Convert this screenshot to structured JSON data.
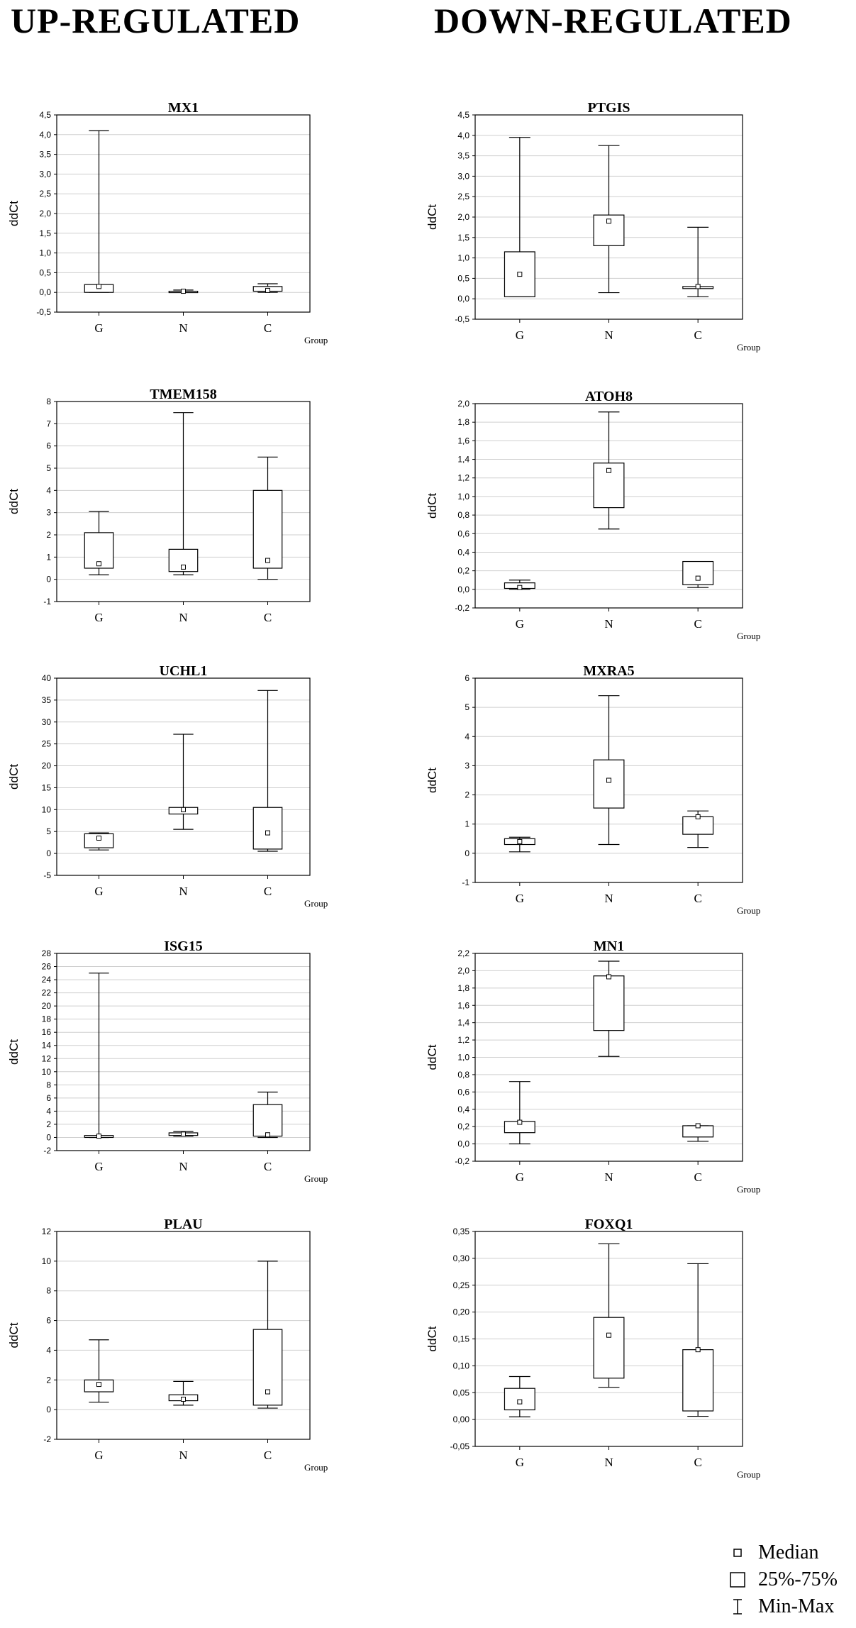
{
  "headings": {
    "left": "UP-REGULATED",
    "right": "DOWN-REGULATED"
  },
  "legend": {
    "median": "Median",
    "box": "25%-75%",
    "whisker": "Min-Max"
  },
  "chart_data": [
    {
      "type": "box",
      "title": "MX1",
      "ylabel": "ddCt",
      "xlabel": "Group",
      "column": "left",
      "ylim": [
        -0.5,
        4.5
      ],
      "yticks": [
        "-0,5",
        "0,0",
        "0,5",
        "1,0",
        "1,5",
        "2,0",
        "2,5",
        "3,0",
        "3,5",
        "4,0",
        "4,5"
      ],
      "categories": [
        "G",
        "N",
        "C"
      ],
      "boxes": [
        {
          "min": 0.0,
          "q1": 0.0,
          "median": 0.15,
          "q3": 0.2,
          "max": 4.1
        },
        {
          "min": 0.0,
          "q1": 0.0,
          "median": 0.03,
          "q3": 0.03,
          "max": 0.06
        },
        {
          "min": 0.0,
          "q1": 0.03,
          "median": 0.05,
          "q3": 0.15,
          "max": 0.22
        }
      ]
    },
    {
      "type": "box",
      "title": "TMEM158",
      "ylabel": "ddCt",
      "xlabel": "",
      "column": "left",
      "ylim": [
        -1,
        8
      ],
      "yticks": [
        "-1",
        "0",
        "1",
        "2",
        "3",
        "4",
        "5",
        "6",
        "7",
        "8"
      ],
      "categories": [
        "G",
        "N",
        "C"
      ],
      "boxes": [
        {
          "min": 0.2,
          "q1": 0.5,
          "median": 0.7,
          "q3": 2.1,
          "max": 3.05
        },
        {
          "min": 0.2,
          "q1": 0.35,
          "median": 0.55,
          "q3": 1.35,
          "max": 7.5
        },
        {
          "min": 0.0,
          "q1": 0.5,
          "median": 0.85,
          "q3": 4.0,
          "max": 5.5
        }
      ]
    },
    {
      "type": "box",
      "title": "UCHL1",
      "ylabel": "ddCt",
      "xlabel": "Group",
      "column": "left",
      "ylim": [
        -5,
        40
      ],
      "yticks": [
        "-5",
        "0",
        "5",
        "10",
        "15",
        "20",
        "25",
        "30",
        "35",
        "40"
      ],
      "categories": [
        "G",
        "N",
        "C"
      ],
      "boxes": [
        {
          "min": 0.8,
          "q1": 1.3,
          "median": 3.5,
          "q3": 4.5,
          "max": 4.7
        },
        {
          "min": 5.5,
          "q1": 9.0,
          "median": 10.0,
          "q3": 10.5,
          "max": 27.2
        },
        {
          "min": 0.5,
          "q1": 1.0,
          "median": 4.7,
          "q3": 10.5,
          "max": 37.2
        }
      ]
    },
    {
      "type": "box",
      "title": "ISG15",
      "ylabel": "ddCt",
      "xlabel": "Group",
      "column": "left",
      "ylim": [
        -2,
        28
      ],
      "yticks": [
        "-2",
        "0",
        "2",
        "4",
        "6",
        "8",
        "10",
        "12",
        "14",
        "16",
        "18",
        "20",
        "22",
        "24",
        "26",
        "28"
      ],
      "categories": [
        "G",
        "N",
        "C"
      ],
      "boxes": [
        {
          "min": 0.0,
          "q1": 0.0,
          "median": 0.2,
          "q3": 0.3,
          "max": 25.0
        },
        {
          "min": 0.2,
          "q1": 0.3,
          "median": 0.5,
          "q3": 0.7,
          "max": 0.9
        },
        {
          "min": 0.0,
          "q1": 0.2,
          "median": 0.4,
          "q3": 5.0,
          "max": 6.9
        }
      ]
    },
    {
      "type": "box",
      "title": "PLAU",
      "ylabel": "ddCt",
      "xlabel": "Group",
      "column": "left",
      "ylim": [
        -2,
        12
      ],
      "yticks": [
        "-2",
        "0",
        "2",
        "4",
        "6",
        "8",
        "10",
        "12"
      ],
      "categories": [
        "G",
        "N",
        "C"
      ],
      "boxes": [
        {
          "min": 0.5,
          "q1": 1.2,
          "median": 1.7,
          "q3": 2.0,
          "max": 4.7
        },
        {
          "min": 0.3,
          "q1": 0.6,
          "median": 0.7,
          "q3": 1.0,
          "max": 1.9
        },
        {
          "min": 0.1,
          "q1": 0.3,
          "median": 1.2,
          "q3": 5.4,
          "max": 10.0
        }
      ]
    },
    {
      "type": "box",
      "title": "PTGIS",
      "ylabel": "ddCt",
      "xlabel": "Group",
      "column": "right",
      "ylim": [
        -0.5,
        4.5
      ],
      "yticks": [
        "-0,5",
        "0,0",
        "0,5",
        "1,0",
        "1,5",
        "2,0",
        "2,5",
        "3,0",
        "3,5",
        "4,0",
        "4,5"
      ],
      "categories": [
        "G",
        "N",
        "C"
      ],
      "boxes": [
        {
          "min": 0.05,
          "q1": 0.05,
          "median": 0.6,
          "q3": 1.15,
          "max": 3.95
        },
        {
          "min": 0.15,
          "q1": 1.3,
          "median": 1.9,
          "q3": 2.05,
          "max": 3.75
        },
        {
          "min": 0.05,
          "q1": 0.25,
          "median": 0.3,
          "q3": 0.3,
          "max": 1.75
        }
      ]
    },
    {
      "type": "box",
      "title": "ATOH8",
      "ylabel": "ddCt",
      "xlabel": "Group",
      "column": "right",
      "ylim": [
        -0.2,
        2.0
      ],
      "yticks": [
        "-0,2",
        "0,0",
        "0,2",
        "0,4",
        "0,6",
        "0,8",
        "1,0",
        "1,2",
        "1,4",
        "1,6",
        "1,8",
        "2,0"
      ],
      "categories": [
        "G",
        "N",
        "C"
      ],
      "boxes": [
        {
          "min": 0.0,
          "q1": 0.01,
          "median": 0.02,
          "q3": 0.07,
          "max": 0.1
        },
        {
          "min": 0.65,
          "q1": 0.88,
          "median": 1.28,
          "q3": 1.36,
          "max": 1.91
        },
        {
          "min": 0.02,
          "q1": 0.05,
          "median": 0.12,
          "q3": 0.3,
          "max": 0.3
        }
      ]
    },
    {
      "type": "box",
      "title": "MXRA5",
      "ylabel": "ddCt",
      "xlabel": "Group",
      "column": "right",
      "ylim": [
        -1,
        6
      ],
      "yticks": [
        "-1",
        "0",
        "1",
        "2",
        "3",
        "4",
        "5",
        "6"
      ],
      "categories": [
        "G",
        "N",
        "C"
      ],
      "boxes": [
        {
          "min": 0.05,
          "q1": 0.3,
          "median": 0.4,
          "q3": 0.5,
          "max": 0.55
        },
        {
          "min": 0.3,
          "q1": 1.55,
          "median": 2.5,
          "q3": 3.2,
          "max": 5.4
        },
        {
          "min": 0.2,
          "q1": 0.65,
          "median": 1.25,
          "q3": 1.25,
          "max": 1.45
        }
      ]
    },
    {
      "type": "box",
      "title": "MN1",
      "ylabel": "ddCt",
      "xlabel": "Group",
      "column": "right",
      "ylim": [
        -0.2,
        2.2
      ],
      "yticks": [
        "-0,2",
        "0,0",
        "0,2",
        "0,4",
        "0,6",
        "0,8",
        "1,0",
        "1,2",
        "1,4",
        "1,6",
        "1,8",
        "2,0",
        "2,2"
      ],
      "categories": [
        "G",
        "N",
        "C"
      ],
      "boxes": [
        {
          "min": 0.0,
          "q1": 0.13,
          "median": 0.25,
          "q3": 0.26,
          "max": 0.72
        },
        {
          "min": 1.01,
          "q1": 1.31,
          "median": 1.93,
          "q3": 1.94,
          "max": 2.11
        },
        {
          "min": 0.03,
          "q1": 0.08,
          "median": 0.21,
          "q3": 0.21,
          "max": 0.21
        }
      ]
    },
    {
      "type": "box",
      "title": "FOXQ1",
      "ylabel": "ddCt",
      "xlabel": "Group",
      "column": "right",
      "ylim": [
        -0.05,
        0.35
      ],
      "yticks": [
        "-0,05",
        "0,00",
        "0,05",
        "0,10",
        "0,15",
        "0,20",
        "0,25",
        "0,30",
        "0,35"
      ],
      "categories": [
        "G",
        "N",
        "C"
      ],
      "boxes": [
        {
          "min": 0.005,
          "q1": 0.018,
          "median": 0.033,
          "q3": 0.058,
          "max": 0.08
        },
        {
          "min": 0.06,
          "q1": 0.077,
          "median": 0.157,
          "q3": 0.19,
          "max": 0.327
        },
        {
          "min": 0.006,
          "q1": 0.016,
          "median": 0.13,
          "q3": 0.13,
          "max": 0.29
        }
      ]
    }
  ]
}
